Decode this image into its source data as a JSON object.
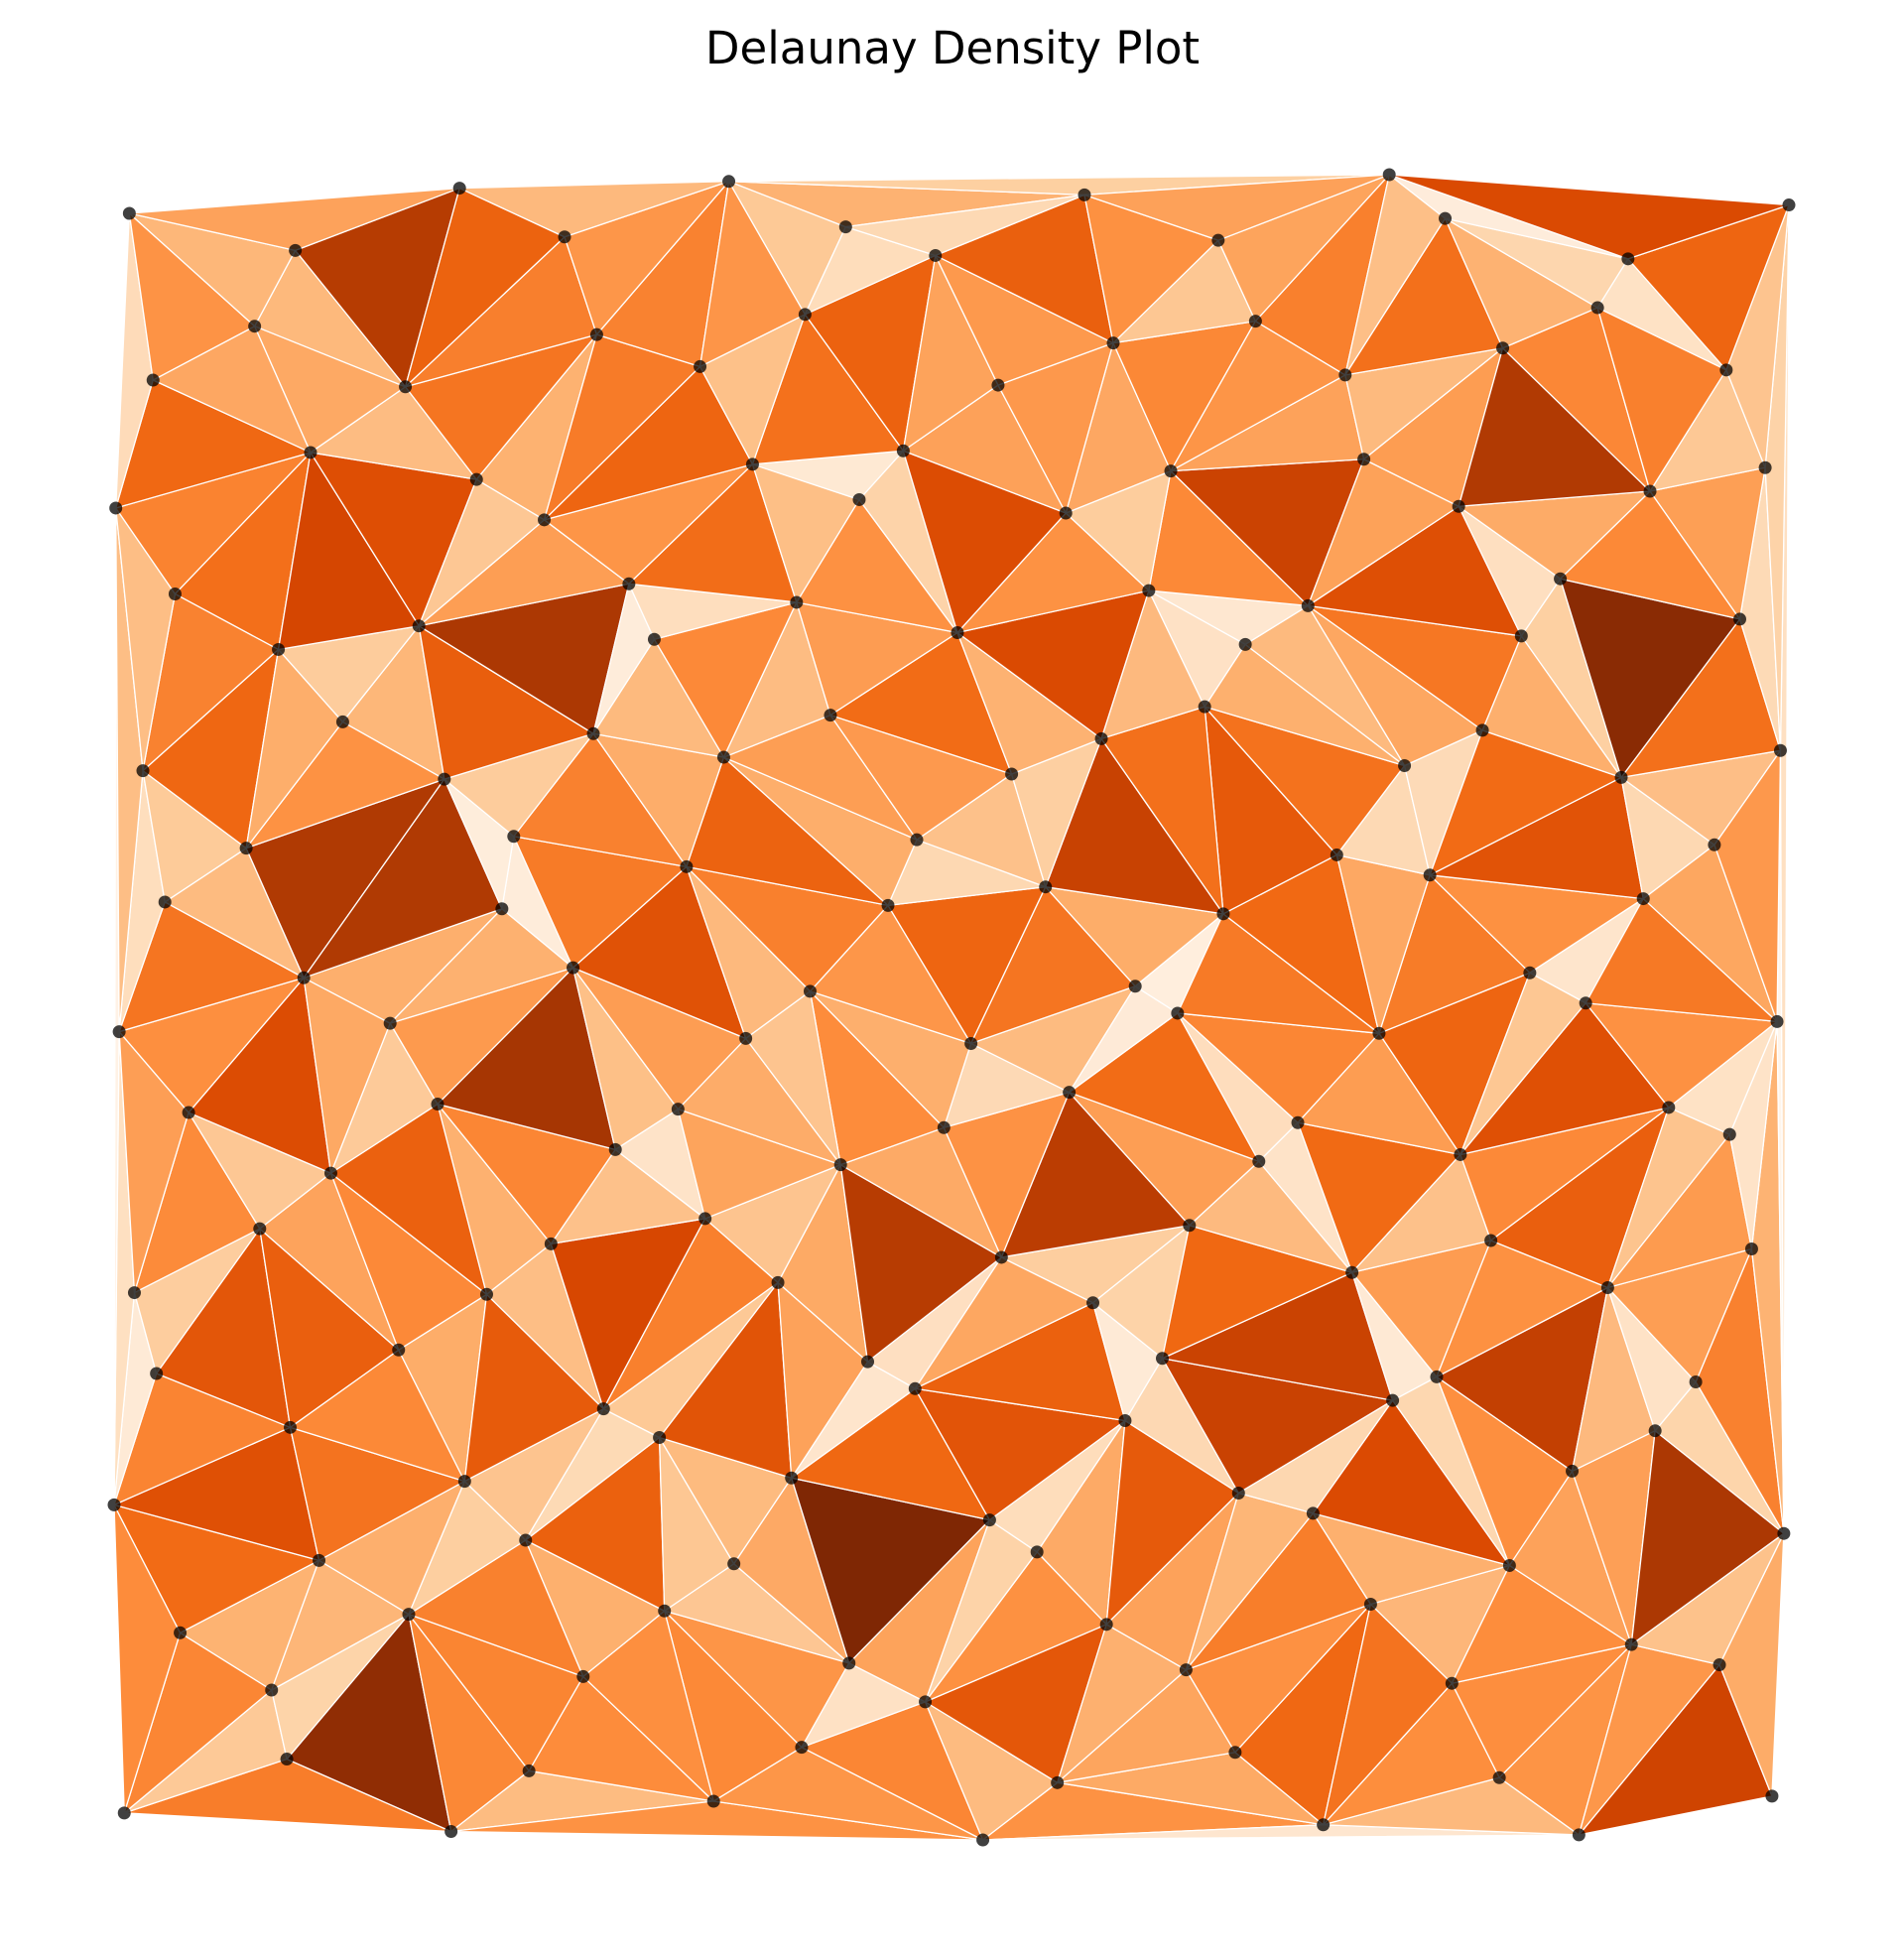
{
  "chart_data": {
    "type": "delaunay",
    "title": "Delaunay Density Plot",
    "x": [
      1.2,
      10.8,
      20.5,
      25.1,
      36.0,
      41.2,
      51.9,
      56.3,
      66.8,
      72.0,
      82.4,
      87.1,
      98.5,
      4.5,
      9.9,
      18.0,
      28.3,
      33.1,
      44.0,
      48.5,
      59.2,
      63.9,
      74.8,
      79.6,
      90.2,
      95.4,
      0.6,
      12.7,
      21.3,
      24.9,
      37.2,
      40.6,
      52.3,
      55.1,
      67.0,
      71.4,
      83.0,
      86.7,
      99.2,
      3.1,
      11.0,
      17.4,
      29.5,
      32.8,
      45.1,
      47.9,
      60.3,
      62.5,
      76.1,
      78.7,
      91.6,
      94.0,
      1.8,
      9.2,
      22.6,
      26.4,
      35.5,
      39.8,
      53.0,
      58.4,
      64.1,
      73.7,
      81.9,
      88.8,
      97.3,
      5.0,
      13.4,
      19.7,
      30.2,
      33.9,
      43.5,
      49.6,
      57.0,
      68.2,
      70.5,
      80.1,
      92.4,
      96.0,
      0.9,
      11.8,
      16.9,
      27.7,
      37.9,
      41.7,
      51.2,
      60.9,
      63.4,
      75.3,
      84.2,
      87.5,
      98.8,
      3.6,
      8.4,
      23.5,
      24.2,
      34.4,
      46.3,
      48.0,
      55.6,
      66.1,
      72.8,
      78.3,
      90.9,
      95.1,
      2.3,
      14.1,
      20.1,
      28.9,
      36.6,
      42.9,
      53.6,
      58.9,
      65.0,
      76.8,
      81.4,
      89.6,
      99.0,
      4.2,
      10.3,
      18.6,
      31.0,
      32.5,
      40.9,
      50.4,
      61.7,
      67.4,
      71.1,
      83.7,
      86.0,
      96.6,
      0.7,
      12.2,
      22.0,
      26.0,
      38.3,
      44.6,
      47.2,
      56.8,
      63.0,
      74.4,
      80.0,
      91.3,
      98.1,
      2.9,
      8.9,
      17.8,
      29.1,
      35.2,
      41.4,
      52.8,
      59.6,
      68.0,
      73.3,
      82.6,
      88.2,
      95.8,
      1.5,
      11.3,
      21.0,
      27.2,
      36.9,
      43.8,
      49.1,
      57.9,
      65.8,
      75.9,
      79.2,
      90.0,
      99.5
    ],
    "y": [
      2.1,
      5.3,
      1.0,
      4.6,
      2.8,
      6.0,
      0.5,
      3.9,
      5.7,
      1.4,
      4.2,
      0.8,
      3.1,
      12.8,
      9.4,
      13.9,
      10.2,
      14.1,
      11.0,
      8.7,
      13.3,
      10.6,
      14.5,
      9.8,
      12.1,
      10.9,
      20.4,
      17.1,
      21.8,
      18.3,
      16.9,
      22.0,
      19.5,
      17.6,
      21.1,
      19.9,
      16.8,
      22.4,
      18.7,
      28.2,
      25.0,
      29.6,
      26.1,
      24.4,
      28.9,
      27.3,
      25.4,
      29.1,
      26.6,
      28.0,
      24.8,
      27.7,
      33.0,
      36.8,
      32.9,
      35.9,
      37.4,
      33.6,
      35.1,
      32.4,
      37.0,
      34.2,
      36.1,
      33.3,
      35.6,
      43.7,
      40.1,
      44.2,
      41.5,
      43.9,
      40.6,
      42.8,
      44.9,
      40.8,
      43.1,
      41.2,
      44.0,
      42.4,
      48.5,
      51.7,
      49.0,
      52.3,
      48.1,
      50.9,
      47.8,
      51.2,
      49.6,
      48.4,
      52.0,
      50.2,
      49.1,
      56.2,
      59.4,
      55.8,
      60.1,
      58.3,
      56.0,
      59.9,
      57.1,
      55.5,
      59.0,
      57.8,
      56.4,
      59.6,
      64.0,
      66.9,
      63.5,
      66.2,
      64.8,
      67.3,
      63.8,
      65.9,
      67.8,
      64.3,
      66.4,
      63.6,
      65.2,
      74.5,
      71.2,
      72.6,
      75.1,
      71.8,
      74.0,
      72.2,
      74.7,
      71.5,
      73.8,
      72.0,
      75.4,
      73.0,
      79.6,
      82.9,
      81.3,
      78.9,
      82.2,
      80.1,
      83.0,
      79.3,
      81.8,
      82.5,
      79.7,
      80.6,
      82.0,
      87.2,
      90.4,
      86.8,
      89.9,
      88.0,
      91.1,
      86.9,
      89.4,
      90.7,
      87.5,
      89.1,
      91.5,
      87.8,
      97.1,
      94.9,
      98.6,
      95.7,
      99.0,
      96.3,
      94.6,
      98.2,
      95.5,
      99.4,
      96.8,
      94.4,
      97.6
    ],
    "colormap": [
      "#fff5eb",
      "#fee6ce",
      "#fdd0a2",
      "#fdae6b",
      "#fd8d3c",
      "#f16913",
      "#d94801",
      "#a63603",
      "#7f2704"
    ],
    "edge_color": "#ffffff",
    "point_color": "#000000"
  }
}
